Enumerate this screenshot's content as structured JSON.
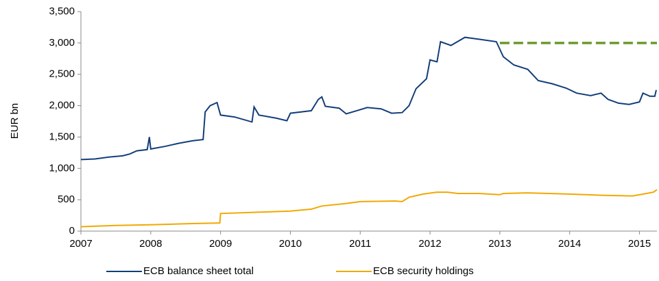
{
  "chart_data": {
    "type": "line",
    "y_label": "EUR bn",
    "xlim": [
      2007,
      2015.25
    ],
    "xticks": [
      2007,
      2008,
      2009,
      2010,
      2011,
      2012,
      2013,
      2014,
      2015
    ],
    "ylim": [
      0,
      3500
    ],
    "yticks": [
      0,
      500,
      {
        "value": 1000,
        "label": "1,000"
      },
      {
        "value": 1500,
        "label": "1,500"
      },
      {
        "value": 2000,
        "label": "2,000"
      },
      {
        "value": 2500,
        "label": "2,500"
      },
      {
        "value": 3000,
        "label": "3,000"
      },
      {
        "value": 3500,
        "label": "3,500"
      }
    ],
    "legend": "bottom",
    "series": [
      {
        "name": "ECB balance sheet total",
        "color": "#133d7a",
        "x": [
          2007.0,
          2007.2,
          2007.4,
          2007.6,
          2007.7,
          2007.8,
          2007.95,
          2007.98,
          2008.0,
          2008.2,
          2008.4,
          2008.6,
          2008.75,
          2008.78,
          2008.85,
          2008.95,
          2009.0,
          2009.2,
          2009.45,
          2009.48,
          2009.55,
          2009.8,
          2009.95,
          2010.0,
          2010.3,
          2010.4,
          2010.45,
          2010.5,
          2010.7,
          2010.8,
          2010.95,
          2011.1,
          2011.3,
          2011.45,
          2011.6,
          2011.7,
          2011.8,
          2011.95,
          2012.0,
          2012.1,
          2012.15,
          2012.3,
          2012.5,
          2012.7,
          2012.95,
          2013.05,
          2013.2,
          2013.4,
          2013.55,
          2013.75,
          2013.95,
          2014.1,
          2014.3,
          2014.45,
          2014.55,
          2014.7,
          2014.85,
          2015.0,
          2015.05,
          2015.15,
          2015.22,
          2015.24
        ],
        "values": [
          1140,
          1150,
          1180,
          1200,
          1230,
          1280,
          1300,
          1500,
          1310,
          1350,
          1400,
          1440,
          1460,
          1900,
          2000,
          2050,
          1850,
          1820,
          1740,
          1980,
          1850,
          1800,
          1760,
          1880,
          1920,
          2100,
          2140,
          1990,
          1960,
          1870,
          1920,
          1970,
          1950,
          1880,
          1890,
          2000,
          2270,
          2430,
          2730,
          2700,
          3020,
          2960,
          3090,
          3060,
          3020,
          2780,
          2650,
          2580,
          2400,
          2350,
          2280,
          2200,
          2160,
          2200,
          2100,
          2040,
          2020,
          2060,
          2200,
          2150,
          2150,
          2250
        ]
      },
      {
        "name": "ECB security holdings",
        "color": "#f2a800",
        "x": [
          2007.0,
          2007.5,
          2008.0,
          2008.6,
          2008.99,
          2009.0,
          2009.5,
          2010.0,
          2010.3,
          2010.45,
          2010.8,
          2011.0,
          2011.5,
          2011.6,
          2011.7,
          2011.9,
          2012.1,
          2012.25,
          2012.4,
          2012.7,
          2013.0,
          2013.05,
          2013.4,
          2014.0,
          2014.5,
          2014.9,
          2015.1,
          2015.2,
          2015.25
        ],
        "values": [
          70,
          90,
          100,
          120,
          130,
          280,
          300,
          320,
          350,
          400,
          440,
          470,
          480,
          470,
          540,
          590,
          620,
          620,
          600,
          600,
          580,
          600,
          610,
          590,
          570,
          560,
          600,
          620,
          660
        ]
      }
    ],
    "reference_lines": [
      {
        "x": [
          2013,
          2015.25
        ],
        "value": 3000,
        "color": "#6a9a2a",
        "dashed": true
      }
    ]
  }
}
